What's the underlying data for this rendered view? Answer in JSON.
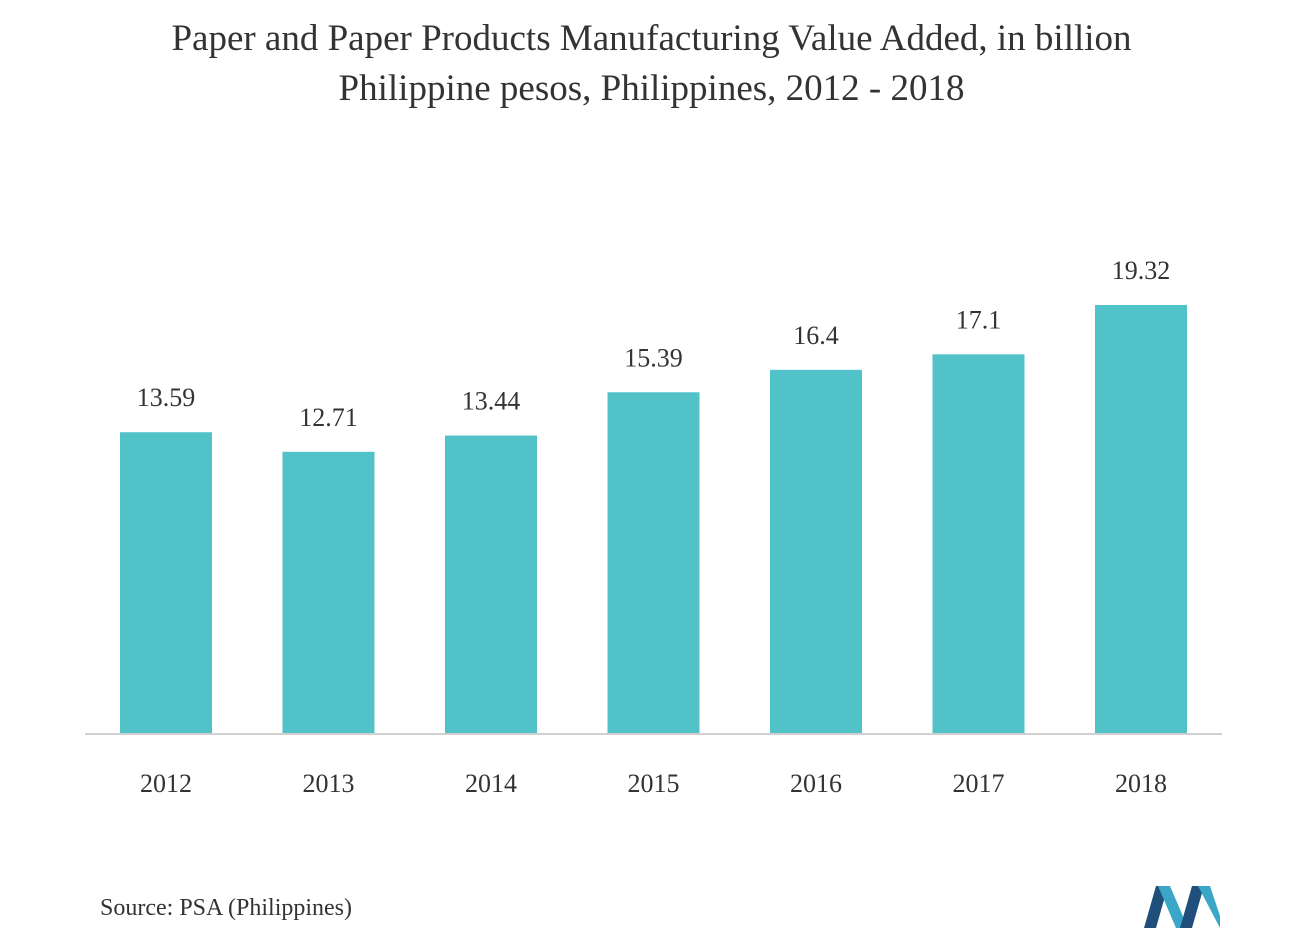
{
  "chart_data": {
    "type": "bar",
    "title_line1": "Paper and Paper Products Manufacturing Value Added, in billion",
    "title_line2": "Philippine pesos, Philippines, 2012 - 2018",
    "categories": [
      "2012",
      "2013",
      "2014",
      "2015",
      "2016",
      "2017",
      "2018"
    ],
    "values": [
      13.59,
      12.71,
      13.44,
      15.39,
      16.4,
      17.1,
      19.32
    ],
    "value_labels": [
      "13.59",
      "12.71",
      "13.44",
      "15.39",
      "16.4",
      "17.1",
      "19.32"
    ],
    "xlabel": "",
    "ylabel": "",
    "ylim": [
      0,
      19.32
    ],
    "grid": false,
    "bar_color": "#52c2c9",
    "axis_color": "#d0d0d0"
  },
  "footer": {
    "source": "Source: PSA (Philippines)",
    "logo_icon": "mordor-intelligence-logo-icon",
    "logo_colors": [
      "#1f4f7a",
      "#3aa7c9"
    ]
  }
}
